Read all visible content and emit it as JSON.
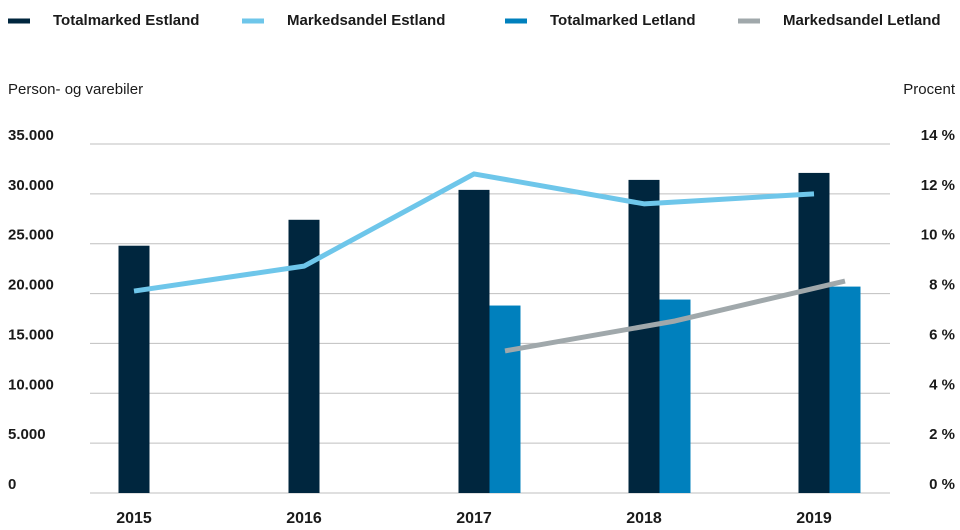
{
  "chart_data": {
    "type": "bar",
    "y_label": "Person- og varebiler",
    "y2_label": "Procent",
    "categories": [
      "2015",
      "2016",
      "2017",
      "2018",
      "2019"
    ],
    "series": [
      {
        "name": "Totalmarked Estland",
        "type": "bar",
        "color": "#00263e",
        "values": [
          24800,
          27400,
          30400,
          31400,
          32100
        ]
      },
      {
        "name": "Markedsandel Estland",
        "type": "line",
        "axis": "y2",
        "color": "#6ec6ea",
        "values": [
          8.1,
          9.1,
          12.8,
          11.6,
          12.0
        ]
      },
      {
        "name": "Totalmarked Letland",
        "type": "bar",
        "color": "#0080bd",
        "values": [
          null,
          null,
          18800,
          19400,
          20700
        ]
      },
      {
        "name": "Markedsandel Letland",
        "type": "line",
        "axis": "y2",
        "color": "#a0a8ab",
        "values": [
          null,
          null,
          5.7,
          6.9,
          8.5
        ]
      }
    ],
    "ylim": [
      0,
      35000
    ],
    "yticks": [
      0,
      {
        "value": 5000,
        "label": "5.000"
      },
      {
        "value": 10000,
        "label": "10.000"
      },
      {
        "value": 15000,
        "label": "15.000"
      },
      {
        "value": 20000,
        "label": "20.000"
      },
      {
        "value": 25000,
        "label": "25.000"
      },
      {
        "value": 30000,
        "label": "30.000"
      },
      {
        "value": 35000,
        "label": "35.000"
      }
    ],
    "y2lim": [
      0,
      14
    ],
    "y2ticks": [
      {
        "value": 0,
        "label": "0 %"
      },
      {
        "value": 2,
        "label": "2 %"
      },
      {
        "value": 4,
        "label": "4 %"
      },
      {
        "value": 6,
        "label": "6 %"
      },
      {
        "value": 8,
        "label": "8 %"
      },
      {
        "value": 10,
        "label": "10 %"
      },
      {
        "value": 12,
        "label": "12 %"
      },
      {
        "value": 14,
        "label": "14 %"
      }
    ],
    "grid": true,
    "legend": "top"
  }
}
